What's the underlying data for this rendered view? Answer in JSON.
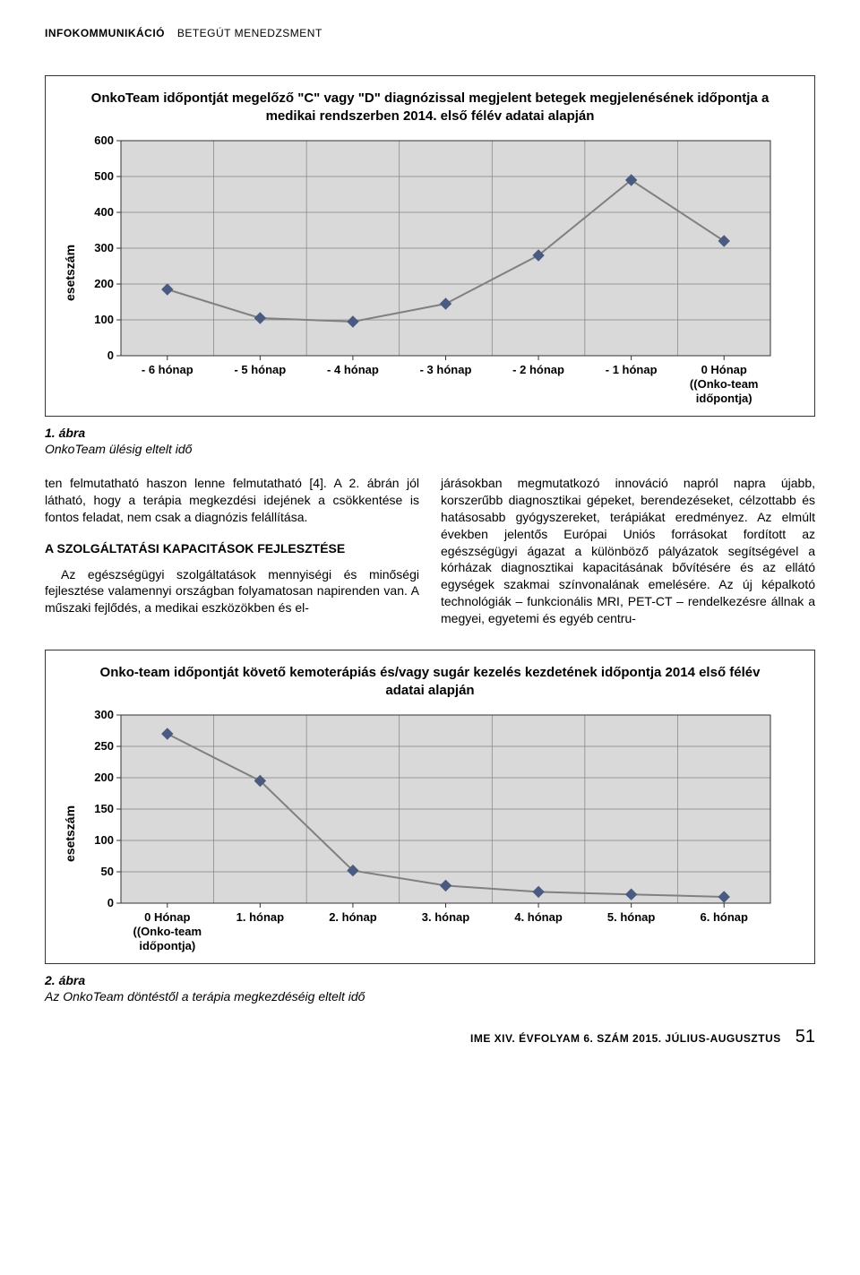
{
  "header": {
    "section_main": "INFOKOMMUNIKÁCIÓ",
    "section_sub": "BETEGÚT MENEDZSMENT"
  },
  "chart1": {
    "type": "line",
    "title": "OnkoTeam időpontját megelőző \"C\" vagy \"D\" diagnózissal megjelent betegek megjelenésének időpontja a medikai rendszerben 2014. első félév adatai alapján",
    "ylabel": "esetszám",
    "ylim": [
      0,
      600
    ],
    "ytick_step": 100,
    "yticks": [
      "0",
      "100",
      "200",
      "300",
      "400",
      "500",
      "600"
    ],
    "categories": [
      "- 6 hónap",
      "- 5 hónap",
      "- 4 hónap",
      "- 3 hónap",
      "- 2 hónap",
      "- 1 hónap",
      "0 Hónap (Onko-team időpontja)"
    ],
    "values": [
      185,
      105,
      95,
      145,
      280,
      490,
      320
    ],
    "line_color": "#808080",
    "marker_color": "#4a5a80",
    "marker_size": 6,
    "line_width": 2,
    "plot_bg": "#d9d9d9",
    "grid_color": "#808080",
    "outer_bg": "#ffffff",
    "axis_fontsize": 13,
    "title_fontsize": 15
  },
  "caption1": {
    "num": "1. ábra",
    "text": "OnkoTeam ülésig eltelt idő"
  },
  "body": {
    "col1_para1": "ten felmutatható haszon lenne felmutatható [4]. A 2. ábrán jól látható, hogy a terápia megkezdési idejének a csökkentése is fontos feladat, nem csak a diagnózis felállítása.",
    "section_heading": "A SZOLGÁLTATÁSI KAPACITÁSOK FEJLESZTÉSE",
    "col1_para2": "Az egészségügyi szolgáltatások mennyiségi és minőségi fejlesztése valamennyi országban folyamatosan napirenden van. A műszaki fejlődés, a medikai eszközökben és el-",
    "col2_para1": "járásokban megmutatkozó innováció napról napra újabb, korszerűbb diagnosztikai gépeket, berendezéseket, célzottabb és hatásosabb gyógyszereket, terápiákat eredményez. Az elmúlt években jelentős Európai Uniós forrásokat fordított az egészségügyi ágazat a különböző pályázatok segítségével a kórházak diagnosztikai kapacitásának bővítésére és az ellátó egységek szakmai színvonalának emelésére. Az új képalkotó technológiák – funkcionális MRI, PET-CT – rendelkezésre állnak a megyei, egyetemi és egyéb centru-"
  },
  "chart2": {
    "type": "line",
    "title": "Onko-team időpontját követő kemoterápiás és/vagy sugár kezelés kezdetének időpontja 2014 első félév adatai alapján",
    "ylabel": "esetszám",
    "ylim": [
      0,
      300
    ],
    "ytick_step": 50,
    "yticks": [
      "0",
      "50",
      "100",
      "150",
      "200",
      "250",
      "300"
    ],
    "categories": [
      "0 Hónap (Onko-team időpontja)",
      "1. hónap",
      "2. hónap",
      "3. hónap",
      "4. hónap",
      "5. hónap",
      "6. hónap"
    ],
    "values": [
      270,
      195,
      52,
      28,
      18,
      14,
      10
    ],
    "line_color": "#808080",
    "marker_color": "#4a5a80",
    "marker_size": 6,
    "line_width": 2,
    "plot_bg": "#d9d9d9",
    "grid_color": "#808080",
    "outer_bg": "#ffffff",
    "axis_fontsize": 13,
    "title_fontsize": 15
  },
  "caption2": {
    "num": "2. ábra",
    "text": "Az OnkoTeam döntéstől a terápia megkezdéséig eltelt idő"
  },
  "footer": {
    "journal": "IME XIV. ÉVFOLYAM 6. SZÁM 2015. JÚLIUS-AUGUSZTUS",
    "page": "51"
  }
}
